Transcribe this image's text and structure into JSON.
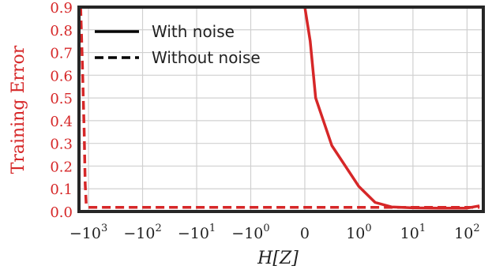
{
  "chart_data": {
    "type": "line",
    "title": "",
    "xlabel": "H[Z]",
    "ylabel": "Training Error",
    "x_scale": "symlog",
    "xlim": [
      -1500,
      200
    ],
    "ylim": [
      0.0,
      0.9
    ],
    "x_ticks": [
      {
        "value": -1000,
        "base": "−10",
        "exp": "3"
      },
      {
        "value": -100,
        "base": "−10",
        "exp": "2"
      },
      {
        "value": -10,
        "base": "−10",
        "exp": "1"
      },
      {
        "value": -1,
        "base": "−10",
        "exp": "0"
      },
      {
        "value": 0,
        "base": "0",
        "exp": ""
      },
      {
        "value": 1,
        "base": "10",
        "exp": "0"
      },
      {
        "value": 10,
        "base": "10",
        "exp": "1"
      },
      {
        "value": 100,
        "base": "10",
        "exp": "2"
      }
    ],
    "y_ticks": [
      "0.0",
      "0.1",
      "0.2",
      "0.3",
      "0.4",
      "0.5",
      "0.6",
      "0.7",
      "0.8",
      "0.9"
    ],
    "grid": true,
    "legend_position": "top-left",
    "legend": [
      {
        "label": "With noise",
        "style": "solid"
      },
      {
        "label": "Without noise",
        "style": "dashed"
      }
    ],
    "series": [
      {
        "name": "With noise",
        "color": "#d62728",
        "style": "solid",
        "points": [
          [
            0,
            0.9
          ],
          [
            0.1,
            0.75
          ],
          [
            0.2,
            0.5
          ],
          [
            0.5,
            0.29
          ],
          [
            1,
            0.11
          ],
          [
            2,
            0.04
          ],
          [
            4,
            0.02
          ],
          [
            10,
            0.016
          ],
          [
            30,
            0.015
          ],
          [
            100,
            0.015
          ],
          [
            170,
            0.025
          ]
        ]
      },
      {
        "name": "Without noise",
        "color": "#d62728",
        "style": "dashed",
        "points": [
          [
            -1400,
            0.9
          ],
          [
            -1300,
            0.65
          ],
          [
            -1200,
            0.35
          ],
          [
            -1150,
            0.12
          ],
          [
            -1100,
            0.03
          ],
          [
            -1000,
            0.018
          ],
          [
            -100,
            0.018
          ],
          [
            -1,
            0.018
          ],
          [
            0,
            0.018
          ],
          [
            1,
            0.018
          ],
          [
            10,
            0.018
          ],
          [
            100,
            0.018
          ],
          [
            170,
            0.018
          ]
        ]
      }
    ],
    "colors": {
      "series": "#d62728",
      "axis_label": "#d62728",
      "frame": "#262626",
      "grid": "#d0d0d0"
    }
  }
}
